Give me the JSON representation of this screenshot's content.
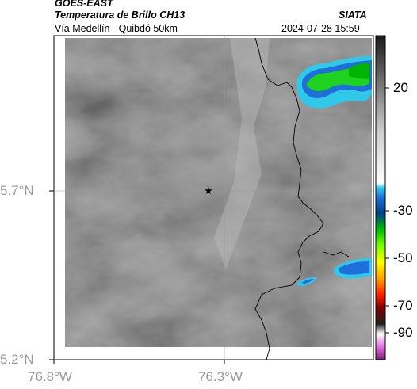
{
  "header": {
    "satellite": "GOES-EAST",
    "product": "Temperatura de Brillo CH13",
    "region": "Vía Medellín - Quibdó 50km",
    "org": "SIATA",
    "timestamp": "2024-07-28 15:59"
  },
  "axes": {
    "lat_ticks": [
      "5.7°N",
      "5.2°N"
    ],
    "lon_ticks": [
      "76.8°W",
      "76.3°W"
    ]
  },
  "colorbar": {
    "ticks": [
      "20",
      "-30",
      "-50",
      "-70",
      "-90"
    ]
  },
  "colors": {
    "cloud_green": "#1fd21f",
    "cloud_blue": "#1e6fd9",
    "cloud_cyan": "#30c8e8",
    "background_gray": "#6a6a6a"
  },
  "marker": {
    "icon": "star-marker-icon"
  }
}
